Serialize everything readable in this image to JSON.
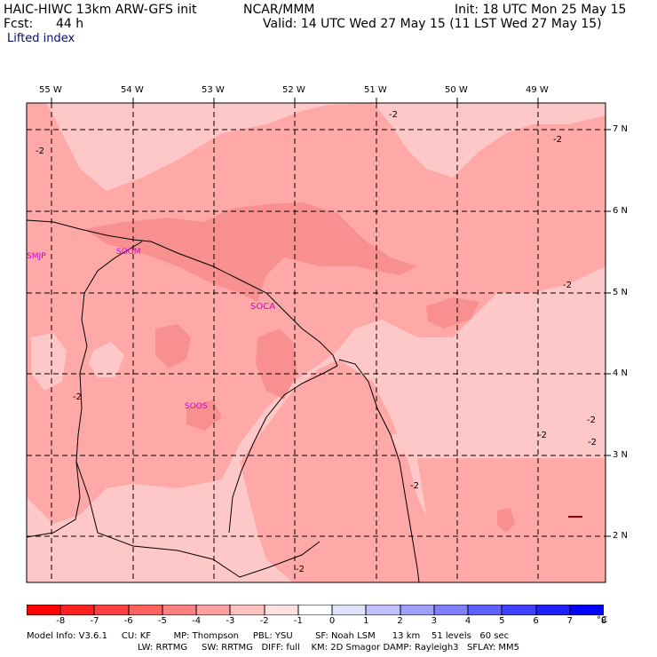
{
  "header": {
    "title_left": "HAIC-HIWC 13km ARW-GFS init",
    "title_mid": "NCAR/MMM",
    "init": "Init: 18 UTC Mon 25 May 15",
    "fcst_label": "Fcst:",
    "fcst_value": "44 h",
    "valid": "Valid: 14 UTC Wed 27 May 15 (11 LST Wed 27 May 15)",
    "field": "Lifted index"
  },
  "map": {
    "lon_labels": [
      "55 W",
      "54 W",
      "53 W",
      "52 W",
      "51 W",
      "50 W",
      "49 W"
    ],
    "lat_labels": [
      "7 N",
      "6 N",
      "5 N",
      "4 N",
      "3 N",
      "2 N"
    ],
    "stations": [
      "SMJP",
      "SOGM",
      "SOCA",
      "SOOS"
    ],
    "contour_label": "-2",
    "fill_colors": {
      "minus1_0": "#ffc8c8",
      "minus2_minus1": "#ffa8a8",
      "minus3_minus2": "#f89090"
    }
  },
  "colorbar": {
    "ticks": [
      "-8",
      "-7",
      "-6",
      "-5",
      "-4",
      "-3",
      "-2",
      "-1",
      "0",
      "1",
      "2",
      "3",
      "4",
      "5",
      "6",
      "7",
      "8"
    ],
    "unit": "°C",
    "colors": [
      "#ff0000",
      "#ff2020",
      "#ff4040",
      "#ff6060",
      "#ff8080",
      "#ffa0a0",
      "#ffc0c0",
      "#ffe0e0",
      "#ffffff",
      "#e0e0ff",
      "#c0c0ff",
      "#a0a0ff",
      "#8080ff",
      "#6060ff",
      "#4040ff",
      "#2020ff",
      "#0000ff"
    ]
  },
  "footer": {
    "line1": "Model Info: V3.6.1     CU: KF        MP: Thompson     PBL: YSU        SF: Noah LSM      13 km    51 levels   60 sec",
    "line2": "LW: RRTMG     SW: RRTMG   DIFF: full    KM: 2D Smagor DAMP: Rayleigh3   SFLAY: MM5"
  }
}
